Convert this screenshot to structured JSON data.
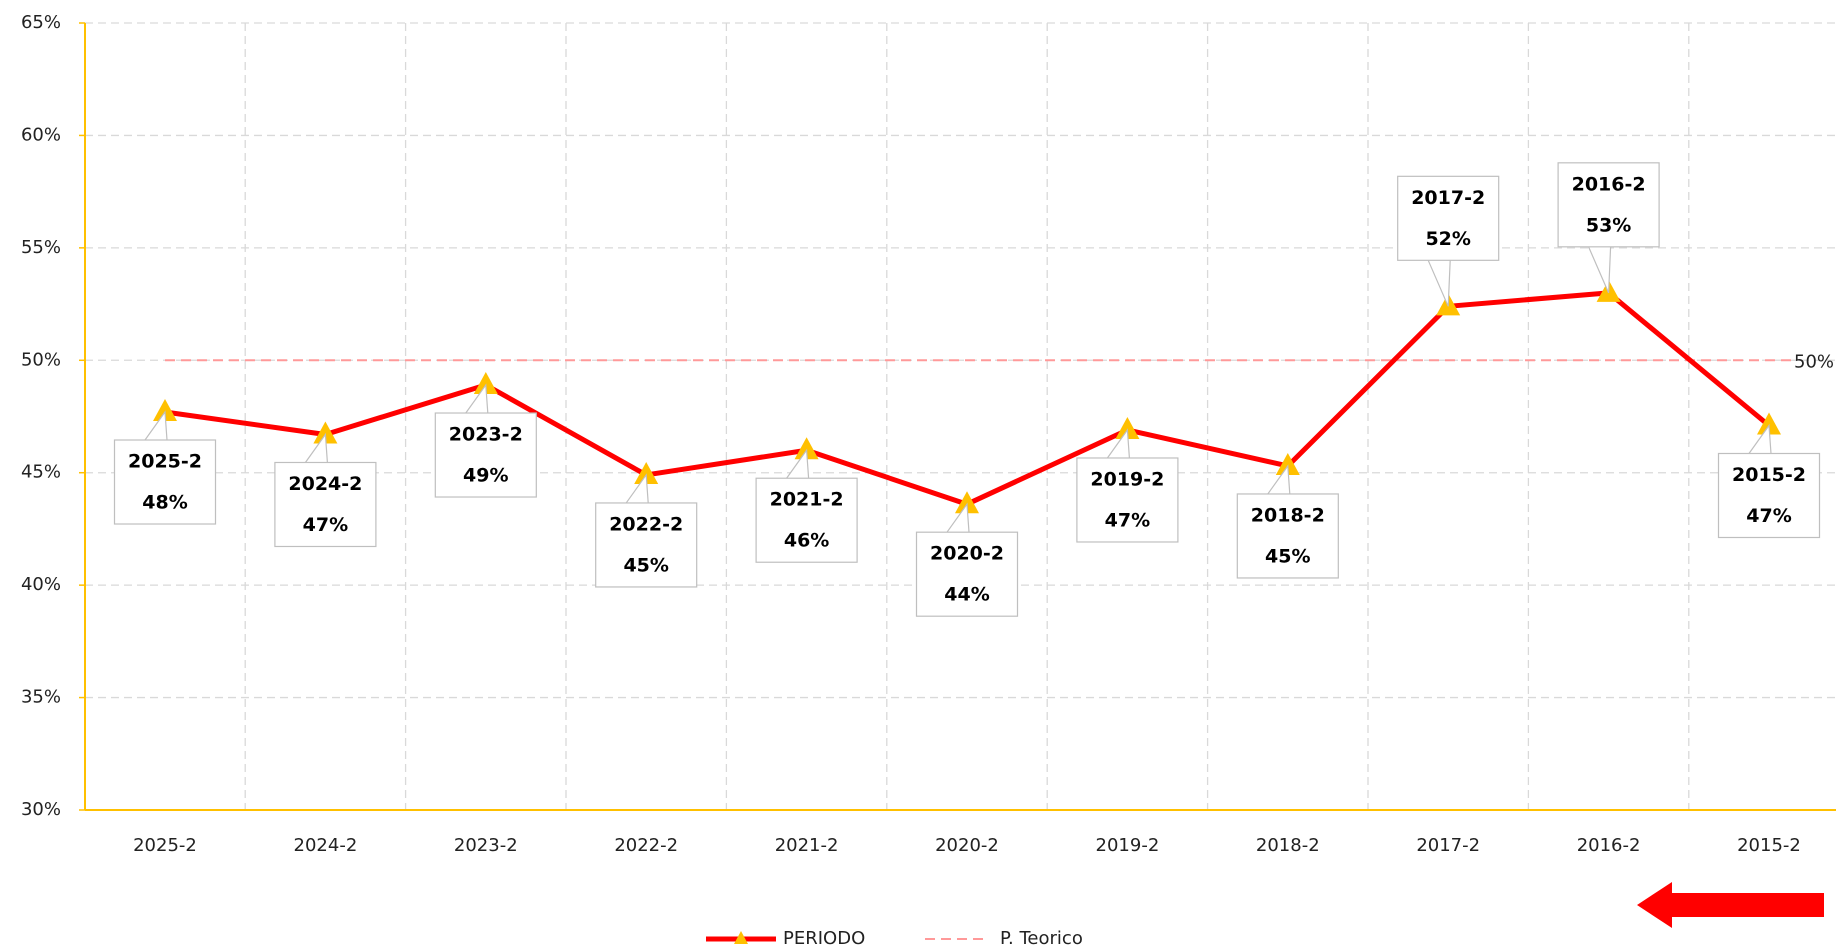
{
  "chart_data": {
    "type": "line",
    "categories": [
      "2025-2",
      "2024-2",
      "2023-2",
      "2022-2",
      "2021-2",
      "2020-2",
      "2019-2",
      "2018-2",
      "2017-2",
      "2016-2",
      "2015-2"
    ],
    "series": [
      {
        "name": "PERIODO",
        "color": "#ff0000",
        "marker_color": "#ffc000",
        "values": [
          47.7,
          46.7,
          48.9,
          44.9,
          46.0,
          43.6,
          46.9,
          45.3,
          52.4,
          53.0,
          47.1
        ],
        "value_labels": [
          "48%",
          "47%",
          "49%",
          "45%",
          "46%",
          "44%",
          "47%",
          "45%",
          "52%",
          "53%",
          "47%"
        ]
      }
    ],
    "reference_line": {
      "name": "P. Teorico",
      "value": 50,
      "label": "50%",
      "color": "#ff9999"
    },
    "ylim": [
      30,
      65
    ],
    "yticks": [
      {
        "value": 30,
        "label": "30%"
      },
      {
        "value": 35,
        "label": "35%"
      },
      {
        "value": 40,
        "label": "40%"
      },
      {
        "value": 45,
        "label": "45%"
      },
      {
        "value": 50,
        "label": "50%"
      },
      {
        "value": 55,
        "label": "55%"
      },
      {
        "value": 60,
        "label": "60%"
      },
      {
        "value": 65,
        "label": "65%"
      }
    ],
    "grid": true,
    "legend": "bottom"
  }
}
